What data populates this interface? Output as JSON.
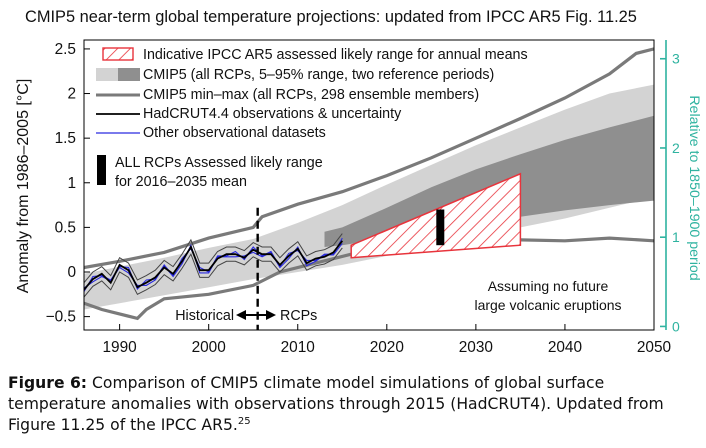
{
  "chart_data": {
    "type": "line",
    "title": "CMIP5 near-term global temperature projections: updated from IPCC AR5 Fig. 11.25",
    "ylabel": "Anomaly from 1986–2005  [°C]",
    "ylabel_right": "Relative to 1850–1900 period",
    "xlim": [
      1986,
      2050
    ],
    "ylim": [
      -0.65,
      2.6
    ],
    "xticks": [
      1990,
      2000,
      2010,
      2020,
      2030,
      2040,
      2050
    ],
    "yticks": [
      -0.5,
      0,
      0.5,
      1,
      1.5,
      2,
      2.5
    ],
    "ytick_labels": [
      "−0.5",
      "0",
      "0.5",
      "1",
      "1.5",
      "2",
      "2.5"
    ],
    "right_axis_offset": 0.61,
    "right_ticks": [
      0,
      1,
      2,
      3
    ],
    "legend": [
      "Indicative IPCC AR5 assessed likely range for annual means",
      "CMIP5 (all RCPs, 5–95% range, two reference periods)",
      "CMIP5 min–max (all RCPs, 298 ensemble members)",
      "HadCRUT4.4 observations & uncertainty",
      "Other observational datasets"
    ],
    "colors": {
      "light_band": "#d3d3d3",
      "dark_band": "#8f8f8f",
      "minmax": "#7a7a7a",
      "observations": "#000000",
      "other_obs": "#2a2ae0",
      "assessed": "#e8343c",
      "right_axis": "#2fb3a0",
      "marker": "#000000"
    },
    "assessed_range": {
      "start_year": 2016,
      "end_year": 2035,
      "lower": [
        0.16,
        0.3
      ],
      "upper": [
        0.3,
        1.1
      ]
    },
    "rcp_mean_marker": {
      "year": 2026,
      "lower": 0.3,
      "upper": 0.7
    },
    "divider_year": 2005.5,
    "cmip5_light": {
      "years": [
        1986,
        1990,
        1995,
        2000,
        2005,
        2010,
        2015,
        2020,
        2025,
        2030,
        2035,
        2040,
        2045,
        2050
      ],
      "lower": [
        -0.42,
        -0.35,
        -0.26,
        -0.17,
        -0.08,
        0.0,
        0.08,
        0.18,
        0.28,
        0.39,
        0.5,
        0.6,
        0.72,
        0.84
      ],
      "upper": [
        -0.02,
        0.06,
        0.16,
        0.27,
        0.37,
        0.55,
        0.75,
        0.98,
        1.2,
        1.42,
        1.62,
        1.82,
        2.0,
        2.1
      ]
    },
    "cmip5_dark": {
      "years": [
        2013,
        2015,
        2020,
        2025,
        2030,
        2035,
        2040,
        2045,
        2050
      ],
      "lower": [
        0.28,
        0.3,
        0.38,
        0.46,
        0.54,
        0.62,
        0.69,
        0.75,
        0.8
      ],
      "upper": [
        0.45,
        0.5,
        0.72,
        0.95,
        1.15,
        1.32,
        1.48,
        1.62,
        1.75
      ]
    },
    "minmax_upper": {
      "years": [
        1986,
        1990,
        1995,
        2000,
        2005,
        2006,
        2010,
        2015,
        2020,
        2025,
        2030,
        2035,
        2040,
        2045,
        2048,
        2050
      ],
      "values": [
        0.05,
        0.12,
        0.22,
        0.38,
        0.5,
        0.62,
        0.76,
        0.9,
        1.08,
        1.28,
        1.5,
        1.72,
        1.95,
        2.22,
        2.45,
        2.5
      ]
    },
    "minmax_lower": {
      "years": [
        1986,
        1988,
        1992,
        1993,
        1995,
        2000,
        2005,
        2008,
        2012,
        2016,
        2020,
        2025,
        2030,
        2035,
        2040,
        2045,
        2050
      ],
      "values": [
        -0.35,
        -0.42,
        -0.52,
        -0.42,
        -0.3,
        -0.25,
        -0.15,
        0.0,
        0.1,
        0.2,
        0.28,
        0.33,
        0.38,
        0.36,
        0.35,
        0.38,
        0.35
      ]
    },
    "observations": {
      "years": [
        1986,
        1987,
        1988,
        1989,
        1990,
        1991,
        1992,
        1993,
        1994,
        1995,
        1996,
        1997,
        1998,
        1999,
        2000,
        2001,
        2002,
        2003,
        2004,
        2005,
        2006,
        2007,
        2008,
        2009,
        2010,
        2011,
        2012,
        2013,
        2014,
        2015
      ],
      "values": [
        -0.2,
        -0.08,
        -0.02,
        -0.12,
        0.08,
        0.02,
        -0.17,
        -0.12,
        -0.06,
        0.05,
        -0.02,
        0.12,
        0.28,
        0.02,
        0.02,
        0.15,
        0.2,
        0.2,
        0.16,
        0.25,
        0.2,
        0.2,
        0.08,
        0.18,
        0.26,
        0.1,
        0.15,
        0.17,
        0.22,
        0.35
      ]
    },
    "annotations": {
      "assessed_range_note": [
        "ALL RCPs Assessed likely range",
        "for 2016–2035 mean"
      ],
      "historical": "Historical",
      "rcps": "RCPs",
      "volcanic_note": [
        "Assuming no future",
        "large volcanic eruptions"
      ]
    }
  },
  "caption": {
    "label": "Figure 6:",
    "text": "Comparison of CMIP5 climate model simulations of global surface temperature anomalies with observations through 2015 (HadCRUT4). Updated from Figure 11.25 of the IPCC AR5.",
    "footnote": "25"
  }
}
